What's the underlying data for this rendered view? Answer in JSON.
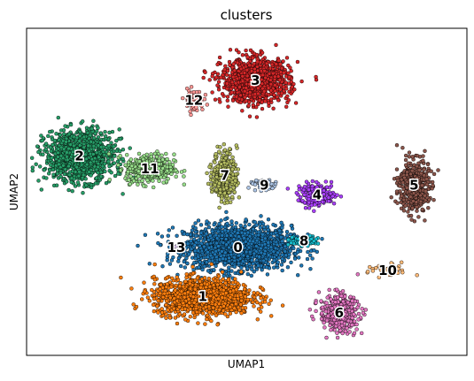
{
  "chart_data": {
    "type": "scatter",
    "title": "clusters",
    "xlabel": "UMAP1",
    "ylabel": "UMAP2",
    "xlim": [
      0,
      100
    ],
    "ylim": [
      0,
      100
    ],
    "grid": false,
    "legend": "on data",
    "clusters": [
      {
        "label": "0",
        "color": "#1f77b4",
        "x": 48,
        "y": 33,
        "sx": 11,
        "sy": 6,
        "n": 1700
      },
      {
        "label": "1",
        "color": "#ff7f0e",
        "x": 40,
        "y": 18,
        "sx": 10,
        "sy": 5,
        "n": 1300
      },
      {
        "label": "2",
        "color": "#279e68",
        "x": 12,
        "y": 61,
        "sx": 7,
        "sy": 7,
        "n": 1100
      },
      {
        "label": "3",
        "color": "#d62728",
        "x": 52,
        "y": 84,
        "sx": 7,
        "sy": 6,
        "n": 1000
      },
      {
        "label": "4",
        "color": "#aa40fc",
        "x": 66,
        "y": 49,
        "sx": 4,
        "sy": 3,
        "n": 180
      },
      {
        "label": "5",
        "color": "#8c564b",
        "x": 88,
        "y": 52,
        "sx": 3,
        "sy": 7,
        "n": 500
      },
      {
        "label": "6",
        "color": "#e377c2",
        "x": 71,
        "y": 13,
        "sx": 4,
        "sy": 5,
        "n": 400
      },
      {
        "label": "7",
        "color": "#b5bd61",
        "x": 45,
        "y": 55,
        "sx": 2.5,
        "sy": 7,
        "n": 320
      },
      {
        "label": "8",
        "color": "#17becf",
        "x": 63,
        "y": 35,
        "sx": 3,
        "sy": 1.2,
        "n": 90
      },
      {
        "label": "9",
        "color": "#aec7e8",
        "x": 54,
        "y": 52,
        "sx": 3,
        "sy": 1.5,
        "n": 40
      },
      {
        "label": "10",
        "color": "#ffbb78",
        "x": 82,
        "y": 26,
        "sx": 4,
        "sy": 2,
        "n": 50
      },
      {
        "label": "11",
        "color": "#98df8a",
        "x": 28,
        "y": 57,
        "sx": 5,
        "sy": 4,
        "n": 400
      },
      {
        "label": "12",
        "color": "#ff9896",
        "x": 38,
        "y": 78,
        "sx": 2,
        "sy": 3,
        "n": 80
      },
      {
        "label": "13",
        "color": "#c5b0d5",
        "x": 34,
        "y": 33,
        "sx": 1,
        "sy": 1,
        "n": 10
      }
    ]
  }
}
